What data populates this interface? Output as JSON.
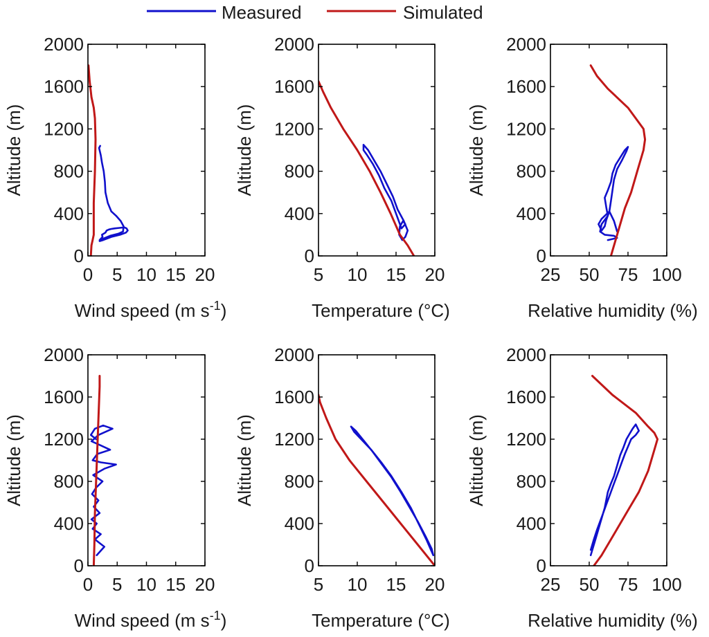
{
  "legend": {
    "placement": "top-center",
    "items": [
      {
        "label": "Measured",
        "color": "#1010cc"
      },
      {
        "label": "Simulated",
        "color": "#c01818"
      }
    ]
  },
  "chart_data": [
    {
      "type": "line",
      "id": "ws-top",
      "xlabel": "Wind speed (m s",
      "xlabel_sup": "-1",
      "xlabel_end": ")",
      "ylabel": "Altitude (m)",
      "xlim": [
        0,
        20
      ],
      "ylim": [
        0,
        2000
      ],
      "xticks": [
        0,
        5,
        10,
        15,
        20
      ],
      "xtick_labels": [
        "0",
        "5",
        "10",
        "15",
        "20"
      ],
      "yticks": [
        0,
        400,
        800,
        1200,
        1600,
        2000
      ],
      "ytick_labels": [
        "0",
        "400",
        "800",
        "1200",
        "1600",
        "2000"
      ],
      "series": [
        {
          "name": "Measured",
          "color": "#1010cc",
          "x": [
            2,
            2.5,
            2.4,
            3,
            3.2,
            3.6,
            4,
            4.6,
            5.4,
            6.2,
            6.6,
            6.8,
            6.5,
            5.5,
            4,
            2.6,
            2,
            2.5,
            3.8,
            5.2,
            6,
            6.1,
            5.6,
            4.8,
            4,
            3.4,
            3,
            2.9,
            2.7,
            2.4,
            2.2,
            1.9,
            2.1
          ],
          "y": [
            150,
            180,
            200,
            220,
            240,
            250,
            255,
            260,
            265,
            270,
            260,
            240,
            220,
            200,
            180,
            150,
            140,
            160,
            190,
            210,
            230,
            280,
            330,
            380,
            420,
            500,
            600,
            700,
            800,
            880,
            950,
            1020,
            1040
          ]
        },
        {
          "name": "Simulated",
          "color": "#c01818",
          "x": [
            0.5,
            0.6,
            0.8,
            1.0,
            1.0,
            1.2,
            1.3,
            1.2,
            1.0,
            0.6,
            0.3,
            0.1
          ],
          "y": [
            0,
            100,
            150,
            200,
            500,
            800,
            1100,
            1300,
            1400,
            1500,
            1650,
            1800
          ]
        }
      ]
    },
    {
      "type": "line",
      "id": "temp-top",
      "xlabel": "Temperature (°C)",
      "ylabel": "Altitude (m)",
      "xlim": [
        5,
        20
      ],
      "ylim": [
        0,
        2000
      ],
      "xticks": [
        5,
        10,
        15,
        20
      ],
      "xtick_labels": [
        "5",
        "10",
        "15",
        "20"
      ],
      "yticks": [
        0,
        400,
        800,
        1200,
        1600,
        2000
      ],
      "ytick_labels": [
        "0",
        "400",
        "800",
        "1200",
        "1600",
        "2000"
      ],
      "series": [
        {
          "name": "Measured",
          "color": "#1010cc",
          "x": [
            15.8,
            15.4,
            15.5,
            15.9,
            16.2,
            15.7,
            15.0,
            14.4,
            13.5,
            12.8,
            12.0,
            11.2,
            10.8,
            10.8,
            11.4,
            12.2,
            13.0,
            13.8,
            14.6,
            15.2,
            16.0,
            16.5,
            16.2,
            15.8
          ],
          "y": [
            150,
            200,
            280,
            330,
            300,
            260,
            400,
            520,
            640,
            760,
            870,
            960,
            1000,
            1050,
            1000,
            900,
            800,
            680,
            560,
            440,
            330,
            240,
            180,
            150
          ]
        },
        {
          "name": "Simulated",
          "color": "#c01818",
          "x": [
            17.3,
            16.5,
            15.5,
            14.3,
            13.0,
            11.6,
            10.0,
            8.2,
            6.6,
            5.6,
            5.0
          ],
          "y": [
            0,
            100,
            200,
            400,
            600,
            800,
            1000,
            1200,
            1400,
            1550,
            1650
          ]
        }
      ]
    },
    {
      "type": "line",
      "id": "rh-top",
      "xlabel": "Relative humidity (%)",
      "ylabel": "Altitude (m)",
      "xlim": [
        25,
        100
      ],
      "ylim": [
        0,
        2000
      ],
      "xticks": [
        25,
        50,
        75,
        100
      ],
      "xtick_labels": [
        "25",
        "50",
        "75",
        "100"
      ],
      "yticks": [
        0,
        400,
        800,
        1200,
        1600,
        2000
      ],
      "ytick_labels": [
        "0",
        "400",
        "800",
        "1200",
        "1600",
        "2000"
      ],
      "series": [
        {
          "name": "Measured",
          "color": "#1010cc",
          "x": [
            62,
            68,
            66,
            60,
            57,
            58,
            62,
            61,
            60,
            62,
            64,
            65,
            67,
            70,
            73,
            75,
            74,
            71,
            68,
            66,
            65,
            64,
            63,
            61,
            60,
            58,
            56,
            58,
            63,
            66,
            68
          ],
          "y": [
            150,
            170,
            190,
            200,
            230,
            300,
            380,
            460,
            550,
            620,
            700,
            780,
            860,
            930,
            1000,
            1030,
            990,
            900,
            820,
            720,
            620,
            520,
            420,
            340,
            280,
            240,
            300,
            350,
            420,
            330,
            230
          ]
        },
        {
          "name": "Simulated",
          "color": "#c01818",
          "x": [
            64,
            65,
            67,
            70,
            73,
            77,
            81,
            85,
            86,
            85,
            75,
            62,
            55,
            51
          ],
          "y": [
            0,
            50,
            150,
            300,
            450,
            600,
            800,
            1000,
            1100,
            1200,
            1400,
            1580,
            1700,
            1800
          ]
        }
      ]
    },
    {
      "type": "line",
      "id": "ws-bottom",
      "xlabel": "Wind speed (m s",
      "xlabel_sup": "-1",
      "xlabel_end": ")",
      "ylabel": "Altitude (m)",
      "xlim": [
        0,
        20
      ],
      "ylim": [
        0,
        2000
      ],
      "xticks": [
        0,
        5,
        10,
        15,
        20
      ],
      "xtick_labels": [
        "0",
        "5",
        "10",
        "15",
        "20"
      ],
      "yticks": [
        0,
        400,
        800,
        1200,
        1600,
        2000
      ],
      "ytick_labels": [
        "0",
        "400",
        "800",
        "1200",
        "1600",
        "2000"
      ],
      "series": [
        {
          "name": "Measured",
          "color": "#1010cc",
          "x": [
            1.5,
            2.8,
            1.2,
            2.2,
            0.8,
            1.5,
            0.6,
            2.0,
            1.0,
            1.8,
            0.7,
            1.4,
            2.5,
            0.9,
            2.8,
            4.8,
            2.2,
            0.8,
            1.6,
            3.8,
            2.2,
            0.6,
            1.8,
            4.2,
            2.6,
            1.2,
            0.5,
            1.4
          ],
          "y": [
            100,
            180,
            250,
            300,
            350,
            400,
            440,
            500,
            560,
            620,
            680,
            740,
            800,
            860,
            920,
            960,
            980,
            1000,
            1060,
            1100,
            1140,
            1180,
            1240,
            1300,
            1330,
            1300,
            1240,
            1200
          ]
        },
        {
          "name": "Simulated",
          "color": "#c01818",
          "x": [
            1.0,
            1.1,
            1.2,
            1.4,
            1.6,
            1.8,
            2.0,
            2.0
          ],
          "y": [
            0,
            200,
            500,
            800,
            1100,
            1400,
            1700,
            1800
          ]
        }
      ]
    },
    {
      "type": "line",
      "id": "temp-bottom",
      "xlabel": "Temperature (°C)",
      "ylabel": "Altitude (m)",
      "xlim": [
        5,
        20
      ],
      "ylim": [
        0,
        2000
      ],
      "xticks": [
        5,
        10,
        15,
        20
      ],
      "xtick_labels": [
        "5",
        "10",
        "15",
        "20"
      ],
      "yticks": [
        0,
        400,
        800,
        1200,
        1600,
        2000
      ],
      "ytick_labels": [
        "0",
        "400",
        "800",
        "1200",
        "1600",
        "2000"
      ],
      "series": [
        {
          "name": "Measured",
          "color": "#1010cc",
          "x": [
            19.8,
            18.9,
            17.9,
            16.9,
            15.7,
            14.4,
            13.1,
            11.8,
            10.5,
            9.6,
            9.2,
            9.8,
            10.9,
            12.0,
            13.2,
            14.4,
            15.6,
            16.7,
            17.8,
            18.8,
            19.6,
            19.8
          ],
          "y": [
            100,
            250,
            400,
            550,
            700,
            850,
            980,
            1100,
            1200,
            1270,
            1320,
            1280,
            1180,
            1080,
            960,
            840,
            700,
            560,
            420,
            280,
            160,
            100
          ]
        },
        {
          "name": "Simulated",
          "color": "#c01818",
          "x": [
            20,
            17.8,
            15.6,
            13.4,
            11.2,
            9.0,
            7.2,
            6.0,
            5.2,
            5.0
          ],
          "y": [
            0,
            200,
            400,
            600,
            800,
            1000,
            1200,
            1400,
            1550,
            1620
          ]
        }
      ]
    },
    {
      "type": "line",
      "id": "rh-bottom",
      "xlabel": "Relative humidity (%)",
      "ylabel": "Altitude (m)",
      "xlim": [
        25,
        100
      ],
      "ylim": [
        0,
        2000
      ],
      "xticks": [
        25,
        50,
        75,
        100
      ],
      "xtick_labels": [
        "25",
        "50",
        "75",
        "100"
      ],
      "yticks": [
        0,
        400,
        800,
        1200,
        1600,
        2000
      ],
      "ytick_labels": [
        "0",
        "400",
        "800",
        "1200",
        "1600",
        "2000"
      ],
      "series": [
        {
          "name": "Measured",
          "color": "#1010cc",
          "x": [
            51,
            54,
            57,
            60,
            62,
            64,
            66,
            68,
            70,
            72,
            74,
            76,
            78,
            80,
            82,
            80,
            77,
            75,
            73,
            71,
            69,
            67,
            65,
            63,
            61,
            59,
            57,
            55,
            53,
            51
          ],
          "y": [
            100,
            250,
            400,
            550,
            700,
            780,
            850,
            950,
            1050,
            1120,
            1200,
            1250,
            1300,
            1340,
            1280,
            1240,
            1200,
            1130,
            1060,
            980,
            900,
            820,
            740,
            660,
            580,
            500,
            420,
            340,
            250,
            150
          ]
        },
        {
          "name": "Simulated",
          "color": "#c01818",
          "x": [
            53,
            58,
            64,
            70,
            76,
            82,
            88,
            92,
            94,
            92,
            88,
            80,
            65,
            52
          ],
          "y": [
            0,
            100,
            250,
            400,
            550,
            700,
            900,
            1100,
            1200,
            1260,
            1320,
            1450,
            1620,
            1800
          ]
        }
      ]
    }
  ]
}
